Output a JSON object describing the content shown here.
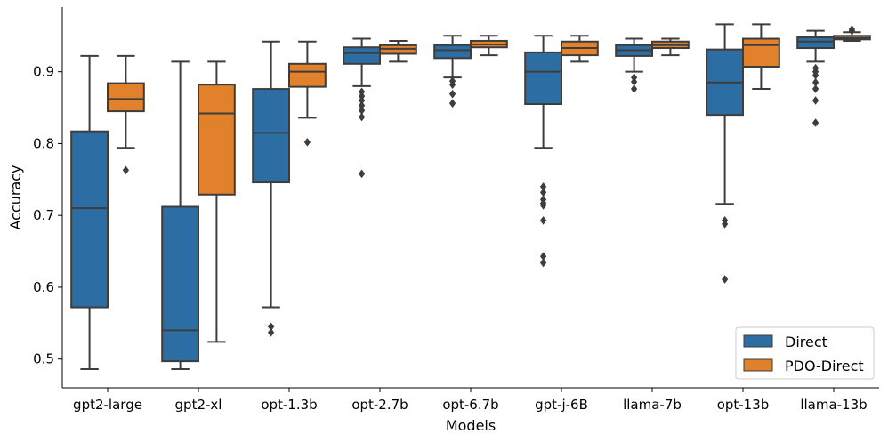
{
  "chart_data": {
    "type": "box",
    "xlabel": "Models",
    "ylabel": "Accuracy",
    "ylim": [
      0.46,
      0.99
    ],
    "yticks": [
      0.5,
      0.6,
      0.7,
      0.8,
      0.9
    ],
    "ytick_labels": [
      "0.5",
      "0.6",
      "0.7",
      "0.8",
      "0.9"
    ],
    "categories": [
      "gpt2-large",
      "gpt2-xl",
      "opt-1.3b",
      "opt-2.7b",
      "opt-6.7b",
      "gpt-j-6B",
      "llama-7b",
      "opt-13b",
      "llama-13b"
    ],
    "legend": {
      "position": "lower-right",
      "entries": [
        "Direct",
        "PDO-Direct"
      ]
    },
    "series": [
      {
        "name": "Direct",
        "color": "#2c6ea4",
        "boxes": [
          {
            "whislo": 0.486,
            "q1": 0.572,
            "median": 0.71,
            "q3": 0.817,
            "whishi": 0.922,
            "fliers": []
          },
          {
            "whislo": 0.486,
            "q1": 0.497,
            "median": 0.54,
            "q3": 0.712,
            "whishi": 0.914,
            "fliers": []
          },
          {
            "whislo": 0.572,
            "q1": 0.746,
            "median": 0.815,
            "q3": 0.876,
            "whishi": 0.942,
            "fliers": [
              0.545,
              0.537
            ]
          },
          {
            "whislo": 0.88,
            "q1": 0.911,
            "median": 0.926,
            "q3": 0.934,
            "whishi": 0.946,
            "fliers": [
              0.872,
              0.866,
              0.86,
              0.853,
              0.846,
              0.837,
              0.758
            ]
          },
          {
            "whislo": 0.892,
            "q1": 0.919,
            "median": 0.93,
            "q3": 0.937,
            "whishi": 0.95,
            "fliers": [
              0.887,
              0.882,
              0.869,
              0.856
            ]
          },
          {
            "whislo": 0.794,
            "q1": 0.855,
            "median": 0.9,
            "q3": 0.927,
            "whishi": 0.95,
            "fliers": [
              0.74,
              0.732,
              0.722,
              0.717,
              0.714,
              0.693,
              0.643,
              0.634
            ]
          },
          {
            "whislo": 0.9,
            "q1": 0.922,
            "median": 0.93,
            "q3": 0.937,
            "whishi": 0.946,
            "fliers": [
              0.892,
              0.886,
              0.876
            ]
          },
          {
            "whislo": 0.716,
            "q1": 0.84,
            "median": 0.885,
            "q3": 0.931,
            "whishi": 0.966,
            "fliers": [
              0.693,
              0.688,
              0.611
            ]
          },
          {
            "whislo": 0.914,
            "q1": 0.933,
            "median": 0.942,
            "q3": 0.948,
            "whishi": 0.957,
            "fliers": [
              0.905,
              0.9,
              0.895,
              0.885,
              0.876,
              0.86,
              0.829
            ]
          }
        ]
      },
      {
        "name": "PDO-Direct",
        "color": "#e1812c",
        "boxes": [
          {
            "whislo": 0.794,
            "q1": 0.845,
            "median": 0.862,
            "q3": 0.884,
            "whishi": 0.922,
            "fliers": [
              0.763
            ]
          },
          {
            "whislo": 0.524,
            "q1": 0.729,
            "median": 0.842,
            "q3": 0.882,
            "whishi": 0.914,
            "fliers": []
          },
          {
            "whislo": 0.836,
            "q1": 0.879,
            "median": 0.9,
            "q3": 0.911,
            "whishi": 0.942,
            "fliers": [
              0.802
            ]
          },
          {
            "whislo": 0.914,
            "q1": 0.925,
            "median": 0.932,
            "q3": 0.937,
            "whishi": 0.943,
            "fliers": []
          },
          {
            "whislo": 0.923,
            "q1": 0.934,
            "median": 0.938,
            "q3": 0.943,
            "whishi": 0.95,
            "fliers": []
          },
          {
            "whislo": 0.914,
            "q1": 0.923,
            "median": 0.933,
            "q3": 0.942,
            "whishi": 0.95,
            "fliers": []
          },
          {
            "whislo": 0.923,
            "q1": 0.933,
            "median": 0.937,
            "q3": 0.942,
            "whishi": 0.946,
            "fliers": []
          },
          {
            "whislo": 0.876,
            "q1": 0.907,
            "median": 0.937,
            "q3": 0.946,
            "whishi": 0.966,
            "fliers": []
          },
          {
            "whislo": 0.943,
            "q1": 0.945,
            "median": 0.947,
            "q3": 0.95,
            "whishi": 0.955,
            "fliers": [
              0.959,
              0.957
            ]
          }
        ]
      }
    ]
  }
}
